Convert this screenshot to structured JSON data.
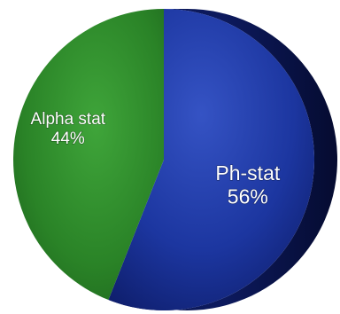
{
  "chart_data": {
    "type": "pie",
    "title": "",
    "slices": [
      {
        "label": "Ph-stat",
        "value": 56,
        "value_label": "56%",
        "color": "#1f3fa6"
      },
      {
        "label": "Alpha stat",
        "value": 44,
        "value_label": "44%",
        "color": "#2e8a2a"
      }
    ],
    "legend": "none"
  }
}
